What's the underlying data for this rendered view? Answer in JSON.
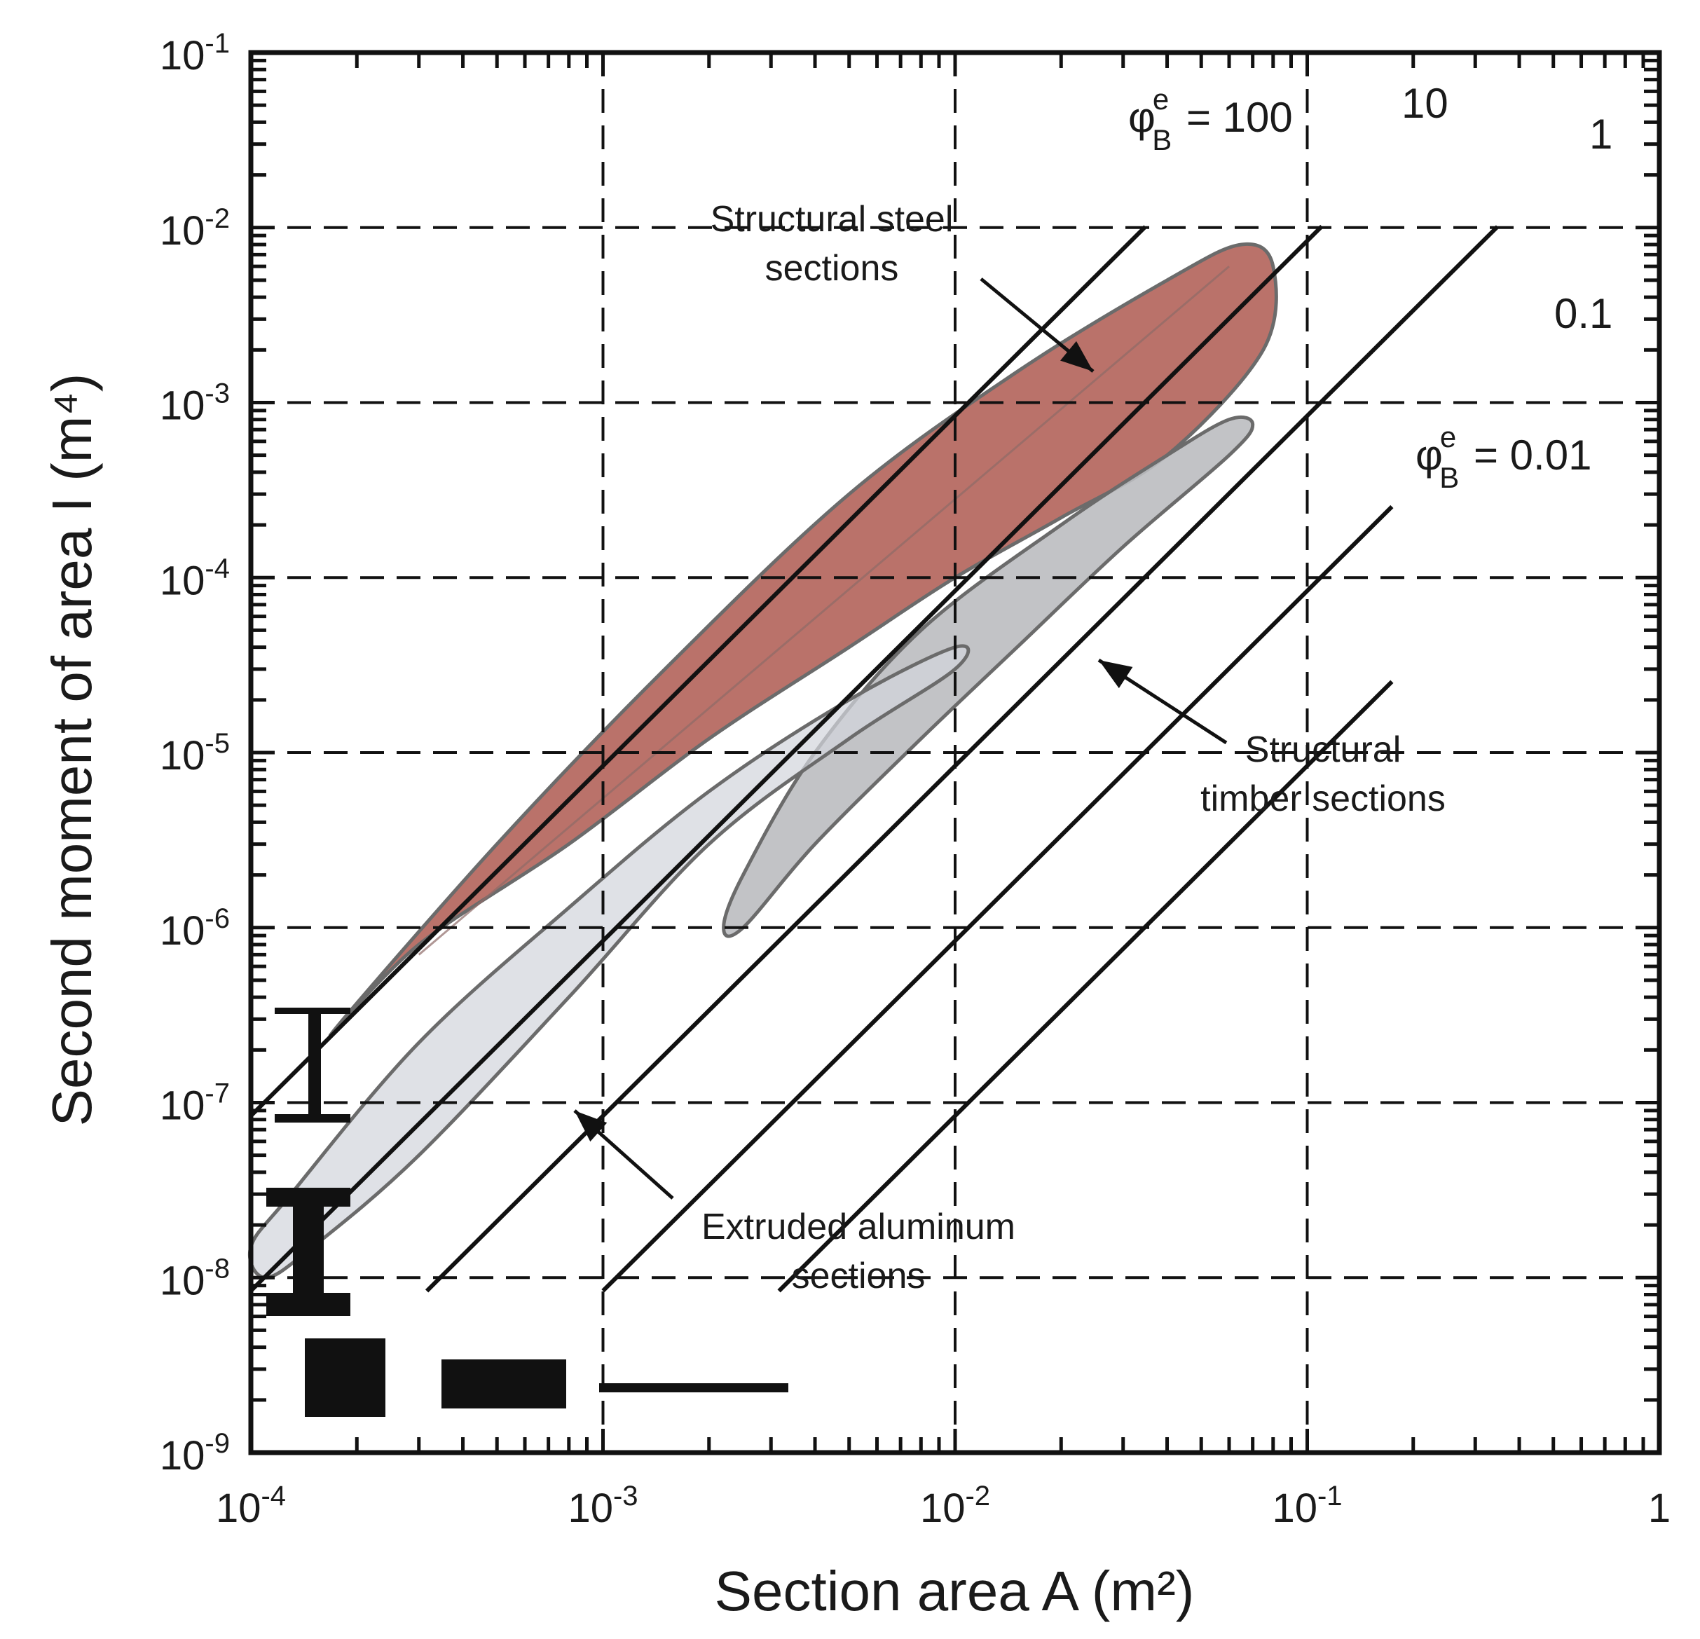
{
  "chart_data": {
    "type": "scatter",
    "title": "",
    "xlabel": "Section area A (m²)",
    "ylabel": "Second moment of area I (m⁴)",
    "xscale": "log",
    "yscale": "log",
    "xlim": [
      0.0001,
      1
    ],
    "ylim": [
      1e-09,
      0.1
    ],
    "grid": true,
    "x_ticks": [
      {
        "value": 0.0001,
        "base": "10",
        "exp": "-4"
      },
      {
        "value": 0.001,
        "base": "10",
        "exp": "-3"
      },
      {
        "value": 0.01,
        "base": "10",
        "exp": "-2"
      },
      {
        "value": 0.1,
        "base": "10",
        "exp": "-1"
      },
      {
        "value": 1,
        "base": "1",
        "exp": ""
      }
    ],
    "y_ticks": [
      {
        "value": 1e-09,
        "base": "10",
        "exp": "-9"
      },
      {
        "value": 1e-08,
        "base": "10",
        "exp": "-8"
      },
      {
        "value": 1e-07,
        "base": "10",
        "exp": "-7"
      },
      {
        "value": 1e-06,
        "base": "10",
        "exp": "-6"
      },
      {
        "value": 1e-05,
        "base": "10",
        "exp": "-5"
      },
      {
        "value": 0.0001,
        "base": "10",
        "exp": "-4"
      },
      {
        "value": 0.001,
        "base": "10",
        "exp": "-3"
      },
      {
        "value": 0.01,
        "base": "10",
        "exp": "-2"
      },
      {
        "value": 0.1,
        "base": "10",
        "exp": "-1"
      }
    ],
    "guide_lines": [
      {
        "phi": 100,
        "label_main": "φ",
        "label_sup": "e",
        "label_sub": "B",
        "label_rest": " = 100",
        "k": 8.4,
        "x_start": 0.0001,
        "x_end": 0.0347
      },
      {
        "phi": 10,
        "label_main": "10",
        "label_sup": "",
        "label_sub": "",
        "label_rest": "",
        "k": 0.84,
        "x_start": 0.0001,
        "x_end": 0.11
      },
      {
        "phi": 1,
        "label_main": "1",
        "label_sup": "",
        "label_sub": "",
        "label_rest": "",
        "k": 0.084,
        "x_start": 0.000316,
        "x_end": 0.347
      },
      {
        "phi": 0.1,
        "label_main": "0.1",
        "label_sup": "",
        "label_sub": "",
        "label_rest": "",
        "k": 0.0084,
        "x_start": 0.001,
        "x_end": 0.174
      },
      {
        "phi": 0.01,
        "label_main": "φ",
        "label_sup": "e",
        "label_sub": "B",
        "label_rest": " = 0.01",
        "k": 0.00084,
        "x_start": 0.00316,
        "x_end": 0.174
      }
    ],
    "series": [
      {
        "name": "Structural steel sections",
        "label_lines": [
          "Structural steel",
          "sections"
        ],
        "color": "#b66a62",
        "outline": [
          [
            0.00017,
            2.5e-07
          ],
          [
            0.0005,
            3e-06
          ],
          [
            0.0015,
            3e-05
          ],
          [
            0.005,
            0.0003
          ],
          [
            0.015,
            0.0015
          ],
          [
            0.04,
            0.005
          ],
          [
            0.065,
            0.008
          ],
          [
            0.08,
            0.006
          ],
          [
            0.075,
            0.002
          ],
          [
            0.04,
            0.0005
          ],
          [
            0.02,
            0.00022
          ],
          [
            0.01,
            0.0001
          ],
          [
            0.005,
            4e-05
          ],
          [
            0.002,
            1.2e-05
          ],
          [
            0.0008,
            3e-06
          ],
          [
            0.0003,
            8e-07
          ]
        ]
      },
      {
        "name": "Structural timber sections",
        "label_lines": [
          "Structural",
          "timber sections"
        ],
        "color": "#bbbdc0",
        "outline": [
          [
            0.0022,
            1e-06
          ],
          [
            0.0025,
            2e-06
          ],
          [
            0.004,
            1e-05
          ],
          [
            0.008,
            5e-05
          ],
          [
            0.02,
            0.0002
          ],
          [
            0.04,
            0.0005
          ],
          [
            0.06,
            0.0008
          ],
          [
            0.07,
            0.00075
          ],
          [
            0.06,
            0.0005
          ],
          [
            0.03,
            0.00015
          ],
          [
            0.015,
            4e-05
          ],
          [
            0.008,
            1.2e-05
          ],
          [
            0.004,
            3e-06
          ],
          [
            0.0025,
            1e-06
          ]
        ]
      },
      {
        "name": "Extruded aluminum sections",
        "label_lines": [
          "Extruded aluminum",
          "sections"
        ],
        "color": "#d3d6dc",
        "outline": [
          [
            0.00011,
            1e-08
          ],
          [
            0.0001,
            1.5e-08
          ],
          [
            0.00013,
            3e-08
          ],
          [
            0.0003,
            2.2e-07
          ],
          [
            0.0008,
            1.3e-06
          ],
          [
            0.002,
            6e-06
          ],
          [
            0.005,
            2e-05
          ],
          [
            0.01,
            4e-05
          ],
          [
            0.01,
            3e-05
          ],
          [
            0.005,
            1.2e-05
          ],
          [
            0.002,
            3e-06
          ],
          [
            0.0008,
            4e-07
          ],
          [
            0.0003,
            5e-08
          ],
          [
            0.00015,
            1.5e-08
          ]
        ]
      }
    ],
    "icons": [
      {
        "name": "tall-i-beam-icon"
      },
      {
        "name": "short-i-beam-icon"
      },
      {
        "name": "square-section-icon"
      },
      {
        "name": "rectangle-section-icon"
      },
      {
        "name": "flat-plate-section-icon"
      }
    ]
  }
}
